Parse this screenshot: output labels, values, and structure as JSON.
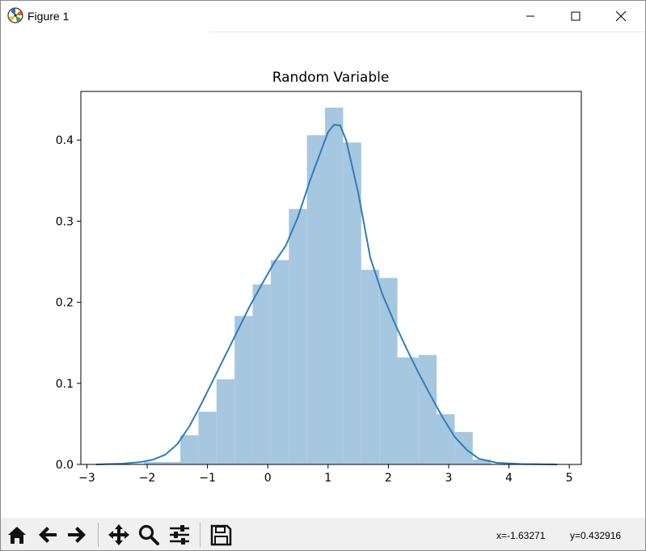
{
  "window": {
    "title": "Figure 1",
    "icon": "matplotlib-logo-icon",
    "controls": {
      "minimize": "minimize-icon",
      "maximize": "maximize-icon",
      "close": "close-icon"
    }
  },
  "chart_data": {
    "type": "histogram",
    "title": "Random Variable",
    "xlabel": "",
    "ylabel": "",
    "xlim": [
      -3.1,
      5.2
    ],
    "ylim": [
      0,
      0.46
    ],
    "xticks": [
      -3,
      -2,
      -1,
      0,
      1,
      2,
      3,
      4,
      5
    ],
    "yticks": [
      0.0,
      0.1,
      0.2,
      0.3,
      0.4
    ],
    "grid": false,
    "bar_color": "#a6c7e0",
    "line_color": "#2f7dba",
    "bins": [
      {
        "x0": -2.05,
        "x1": -1.45,
        "density": 0.003
      },
      {
        "x0": -1.45,
        "x1": -1.15,
        "density": 0.036
      },
      {
        "x0": -1.15,
        "x1": -0.85,
        "density": 0.065
      },
      {
        "x0": -0.85,
        "x1": -0.55,
        "density": 0.105
      },
      {
        "x0": -0.55,
        "x1": -0.25,
        "density": 0.183
      },
      {
        "x0": -0.25,
        "x1": 0.05,
        "density": 0.222
      },
      {
        "x0": 0.05,
        "x1": 0.35,
        "density": 0.252
      },
      {
        "x0": 0.35,
        "x1": 0.65,
        "density": 0.315
      },
      {
        "x0": 0.65,
        "x1": 0.95,
        "density": 0.406
      },
      {
        "x0": 0.95,
        "x1": 1.25,
        "density": 0.44
      },
      {
        "x0": 1.25,
        "x1": 1.55,
        "density": 0.397
      },
      {
        "x0": 1.55,
        "x1": 1.85,
        "density": 0.24
      },
      {
        "x0": 1.85,
        "x1": 2.15,
        "density": 0.23
      },
      {
        "x0": 2.15,
        "x1": 2.5,
        "density": 0.132
      },
      {
        "x0": 2.5,
        "x1": 2.8,
        "density": 0.135
      },
      {
        "x0": 2.8,
        "x1": 3.1,
        "density": 0.062
      },
      {
        "x0": 3.1,
        "x1": 3.4,
        "density": 0.04
      },
      {
        "x0": 3.4,
        "x1": 3.7,
        "density": 0.006
      }
    ],
    "kde": {
      "name": "",
      "x": [
        -2.85,
        -2.4,
        -2.1,
        -1.9,
        -1.7,
        -1.5,
        -1.3,
        -1.1,
        -0.9,
        -0.7,
        -0.5,
        -0.3,
        -0.1,
        0.1,
        0.3,
        0.5,
        0.7,
        0.9,
        1.0,
        1.1,
        1.2,
        1.3,
        1.5,
        1.7,
        1.9,
        2.1,
        2.3,
        2.5,
        2.7,
        2.9,
        3.1,
        3.3,
        3.5,
        3.8,
        4.2,
        4.8
      ],
      "y": [
        0.0,
        0.001,
        0.003,
        0.006,
        0.012,
        0.025,
        0.047,
        0.075,
        0.105,
        0.135,
        0.165,
        0.195,
        0.222,
        0.248,
        0.27,
        0.305,
        0.35,
        0.39,
        0.41,
        0.419,
        0.418,
        0.4,
        0.335,
        0.255,
        0.21,
        0.175,
        0.143,
        0.113,
        0.085,
        0.058,
        0.034,
        0.018,
        0.007,
        0.002,
        0.0005,
        0.0
      ]
    }
  },
  "toolbar": {
    "buttons": [
      {
        "name": "home-button",
        "icon": "home-icon"
      },
      {
        "name": "back-button",
        "icon": "arrow-left-icon"
      },
      {
        "name": "forward-button",
        "icon": "arrow-right-icon"
      },
      {
        "name": "pan-button",
        "icon": "move-icon"
      },
      {
        "name": "zoom-button",
        "icon": "magnifier-icon"
      },
      {
        "name": "configure-subplots-button",
        "icon": "sliders-icon"
      },
      {
        "name": "save-button",
        "icon": "floppy-disk-icon"
      }
    ],
    "coordinates": {
      "x": "x=-1.63271",
      "y": "y=0.432916"
    }
  }
}
